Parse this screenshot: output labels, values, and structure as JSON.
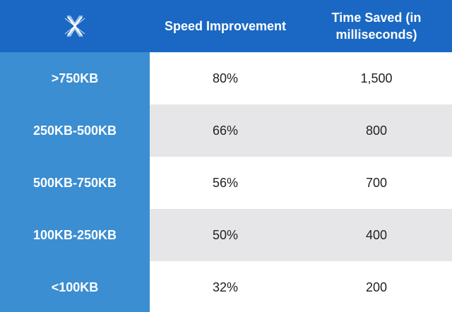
{
  "colors": {
    "header_bg": "#1a68c4",
    "label_col_bg": "#3b8ed2",
    "stripe_gray": "#e6e6e8",
    "stripe_white": "#ffffff"
  },
  "header": {
    "logo_icon": "x-star-logo-icon",
    "col_speed": "Speed Improvement",
    "col_time": "Time Saved (in milliseconds)"
  },
  "chart_data": {
    "type": "table",
    "columns": [
      "",
      "Speed Improvement",
      "Time Saved (in milliseconds)"
    ],
    "rows": [
      {
        "label": ">750KB",
        "speed": "80%",
        "time": "1,500"
      },
      {
        "label": "250KB-500KB",
        "speed": "66%",
        "time": "800"
      },
      {
        "label": "500KB-750KB",
        "speed": "56%",
        "time": "700"
      },
      {
        "label": "100KB-250KB",
        "speed": "50%",
        "time": "400"
      },
      {
        "label": "<100KB",
        "speed": "32%",
        "time": "200"
      }
    ]
  }
}
